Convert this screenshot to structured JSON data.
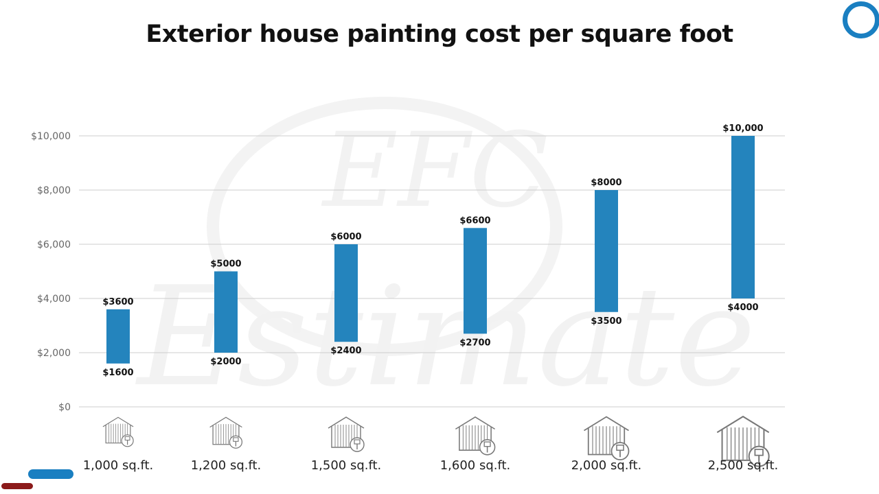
{
  "page": {
    "title": "Exterior house painting cost per square foot"
  },
  "colors": {
    "bar": "#2484bd",
    "gridline": "#cccccc",
    "accent": "#1a7fc1",
    "accent_dark": "#8b1a1a"
  },
  "chart_data": {
    "type": "bar",
    "subtype": "floating-range",
    "title": "Exterior house painting cost per square foot",
    "xlabel": "",
    "ylabel": "",
    "ylim": [
      0,
      10000
    ],
    "yticks": [
      0,
      2000,
      4000,
      6000,
      8000,
      10000
    ],
    "ytick_labels": [
      "$0",
      "$2,000",
      "$4,000",
      "$6,000",
      "$8,000",
      "$10,000"
    ],
    "grid": true,
    "legend": "none",
    "categories": [
      "1,000 sq.ft.",
      "1,200 sq.ft.",
      "1,500 sq.ft.",
      "1,600 sq.ft.",
      "2,000 sq.ft.",
      "2,500 sq.ft."
    ],
    "low": [
      1600,
      2000,
      2400,
      2700,
      3500,
      4000
    ],
    "high": [
      3600,
      5000,
      6000,
      6600,
      8000,
      10000
    ],
    "low_labels": [
      "$1600",
      "$2000",
      "$2400",
      "$2700",
      "$3500",
      "$4000"
    ],
    "high_labels": [
      "$3600",
      "$5000",
      "$6000",
      "$6600",
      "$8000",
      "$10,000"
    ],
    "category_icon": "house-paint-icon"
  }
}
